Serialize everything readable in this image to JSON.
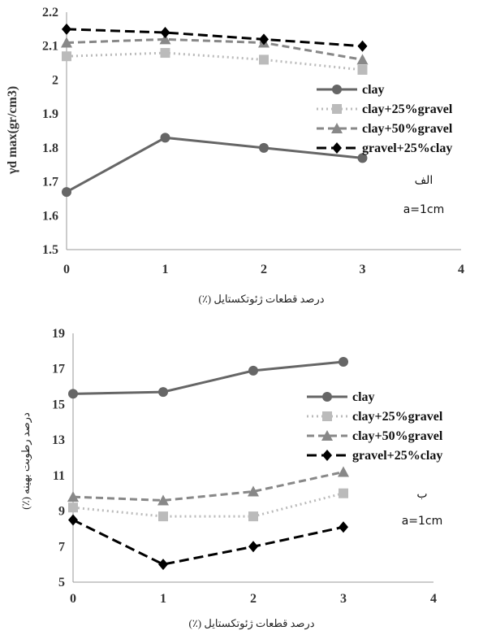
{
  "chart_data": [
    {
      "type": "line",
      "x": [
        0,
        1,
        2,
        3
      ],
      "xlim": [
        0,
        4
      ],
      "xticks": [
        "0",
        "1",
        "2",
        "3",
        "4"
      ],
      "ylim": [
        1.5,
        2.2
      ],
      "yticks": [
        "1.5",
        "1.6",
        "1.7",
        "1.8",
        "1.9",
        "2",
        "2.1",
        "2.2"
      ],
      "ylabel": "γd max(gr/cm3)",
      "xlabel": "درصد قطعات ژئوتکستایل (٪)",
      "annotation_letter": "الف",
      "annotation_size": "a=1cm",
      "legend_position": "right",
      "series": [
        {
          "name": "clay",
          "values": [
            1.67,
            1.83,
            1.8,
            1.77
          ],
          "color": "#666666",
          "marker": "circle",
          "dash": "solid"
        },
        {
          "name": "clay+25%gravel",
          "values": [
            2.07,
            2.08,
            2.06,
            2.03
          ],
          "color": "#bbbbbb",
          "marker": "square",
          "dash": "dotted"
        },
        {
          "name": "clay+50%gravel",
          "values": [
            2.11,
            2.12,
            2.11,
            2.06
          ],
          "color": "#888888",
          "marker": "triangle",
          "dash": "dashed"
        },
        {
          "name": "gravel+25%clay",
          "values": [
            2.15,
            2.14,
            2.12,
            2.1
          ],
          "color": "#000000",
          "marker": "diamond",
          "dash": "longdash"
        }
      ]
    },
    {
      "type": "line",
      "x": [
        0,
        1,
        2,
        3
      ],
      "xlim": [
        0,
        4
      ],
      "xticks": [
        "0",
        "1",
        "2",
        "3",
        "4"
      ],
      "ylim": [
        5,
        19
      ],
      "yticks": [
        "5",
        "7",
        "9",
        "11",
        "13",
        "15",
        "17",
        "19"
      ],
      "ylabel": "درصد رطوبت بهینه (٪)",
      "xlabel": "درصد قطعات ژئوتکستایل (٪)",
      "annotation_letter": "ب",
      "annotation_size": "a=1cm",
      "legend_position": "right",
      "series": [
        {
          "name": "clay",
          "values": [
            15.6,
            15.7,
            16.9,
            17.4
          ],
          "color": "#666666",
          "marker": "circle",
          "dash": "solid"
        },
        {
          "name": "clay+25%gravel",
          "values": [
            9.2,
            8.7,
            8.7,
            10.0
          ],
          "color": "#bbbbbb",
          "marker": "square",
          "dash": "dotted"
        },
        {
          "name": "clay+50%gravel",
          "values": [
            9.8,
            9.6,
            10.1,
            11.2
          ],
          "color": "#888888",
          "marker": "triangle",
          "dash": "dashed"
        },
        {
          "name": "gravel+25%clay",
          "values": [
            8.5,
            6.0,
            7.0,
            8.1
          ],
          "color": "#000000",
          "marker": "diamond",
          "dash": "longdash"
        }
      ]
    }
  ]
}
